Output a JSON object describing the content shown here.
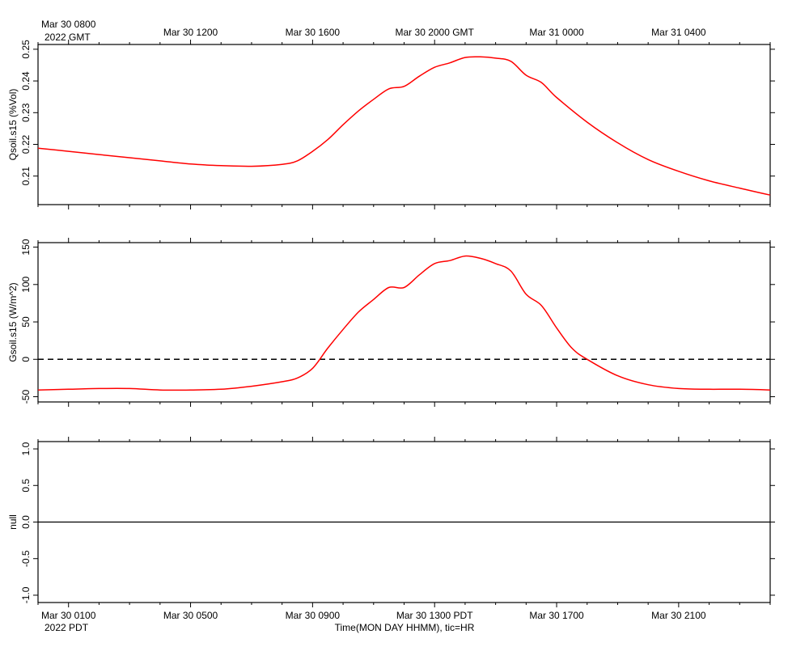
{
  "chart_data": {
    "type": "line",
    "time_axis": {
      "start_pdt_hour": 0,
      "end_pdt_hour": 24,
      "major_tick_every_hours": 4,
      "minor_tick_every_hours": 1,
      "top_tick_labels": [
        "Mar 30 0800",
        "Mar 30 1200",
        "Mar 30 1600",
        "Mar 30 2000 GMT",
        "Mar 31 0000",
        "Mar 31 0400"
      ],
      "top_tick_hours": [
        1,
        5,
        9,
        13,
        17,
        21
      ],
      "top_year_label": "2022 GMT",
      "bottom_tick_labels": [
        "Mar 30 0100",
        "Mar 30 0500",
        "Mar 30 0900",
        "Mar 30 1300 PDT",
        "Mar 30 1700",
        "Mar 30 2100"
      ],
      "bottom_tick_hours": [
        1,
        5,
        9,
        13,
        17,
        21
      ],
      "bottom_year_label": "2022 PDT",
      "xlabel": "Time(MON DAY HHMM), tic=HR"
    },
    "panels": [
      {
        "ylabel": "Qsoil.s15 (%Vol)",
        "ylim": [
          0.201,
          0.2515
        ],
        "yticks": [
          0.21,
          0.22,
          0.23,
          0.24,
          0.25
        ],
        "ytick_labels": [
          "0.21",
          "0.22",
          "0.23",
          "0.24",
          "0.25"
        ],
        "zero_line": "none",
        "series": [
          {
            "color": "#ff0000",
            "x": [
              0,
              1,
              2,
              3,
              4,
              5,
              6,
              7,
              8,
              8.5,
              9,
              9.5,
              10,
              10.5,
              11,
              11.5,
              12,
              12.5,
              13,
              13.5,
              14,
              14.5,
              15,
              15.5,
              16,
              16.5,
              17,
              18,
              19,
              20,
              21,
              22,
              23,
              24
            ],
            "y": [
              0.2188,
              0.2178,
              0.2168,
              0.2158,
              0.2148,
              0.2138,
              0.2133,
              0.2131,
              0.2137,
              0.2148,
              0.2178,
              0.2215,
              0.2262,
              0.2305,
              0.2342,
              0.2375,
              0.2383,
              0.2415,
              0.2443,
              0.2457,
              0.2474,
              0.2476,
              0.2472,
              0.2462,
              0.2418,
              0.2395,
              0.2348,
              0.227,
              0.2205,
              0.2152,
              0.2115,
              0.2085,
              0.2062,
              0.204
            ]
          }
        ]
      },
      {
        "ylabel": "Gsoil.s15 (W/m^2)",
        "ylim": [
          -57,
          156
        ],
        "yticks": [
          -50,
          0,
          50,
          100,
          150
        ],
        "ytick_labels": [
          "-50",
          "0",
          "50",
          "100",
          "150"
        ],
        "zero_line": "dashed",
        "series": [
          {
            "color": "#ff0000",
            "x": [
              0,
              1,
              2,
              3,
              4,
              5,
              6,
              7,
              8,
              8.5,
              9,
              9.5,
              10,
              10.5,
              11,
              11.5,
              12,
              12.5,
              13,
              13.5,
              14,
              14.5,
              15,
              15.5,
              16,
              16.5,
              17,
              17.5,
              18,
              19,
              20,
              21,
              22,
              23,
              24
            ],
            "y": [
              -41,
              -40,
              -39,
              -39,
              -41,
              -41,
              -40,
              -36,
              -30,
              -25,
              -12,
              15,
              40,
              63,
              80,
              96,
              96,
              113,
              128,
              132,
              138,
              135,
              128,
              118,
              87,
              72,
              42,
              15,
              0,
              -22,
              -34,
              -39,
              -40,
              -40,
              -41
            ]
          }
        ]
      },
      {
        "ylabel": "null",
        "ylim": [
          -1.1,
          1.1
        ],
        "yticks": [
          -1.0,
          -0.5,
          0.0,
          0.5,
          1.0
        ],
        "ytick_labels": [
          "-1.0",
          "-0.5",
          "0.0",
          "0.5",
          "1.0"
        ],
        "zero_line": "solid",
        "series": []
      }
    ]
  }
}
